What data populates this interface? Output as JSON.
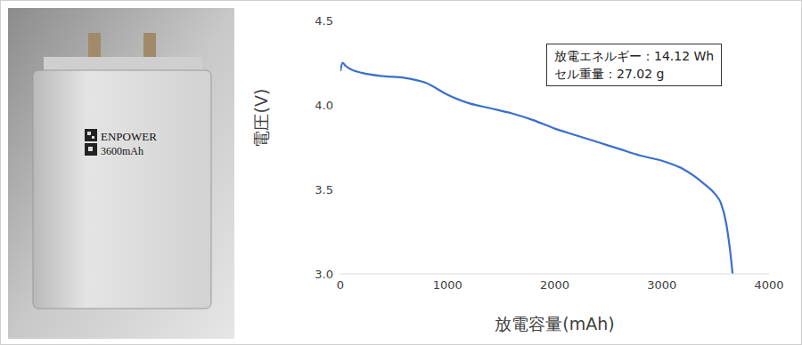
{
  "chart_data": {
    "type": "line",
    "xlabel": "放電容量(mAh)",
    "ylabel": "電圧(V)",
    "x": [
      0,
      20,
      50,
      100,
      200,
      400,
      600,
      800,
      1000,
      1200,
      1400,
      1600,
      1800,
      2000,
      2200,
      2400,
      2600,
      2800,
      3000,
      3200,
      3400,
      3500,
      3550,
      3600,
      3640,
      3660
    ],
    "values": [
      4.2,
      4.25,
      4.23,
      4.21,
      4.19,
      4.17,
      4.16,
      4.13,
      4.06,
      4.01,
      3.98,
      3.95,
      3.91,
      3.86,
      3.82,
      3.78,
      3.74,
      3.7,
      3.67,
      3.62,
      3.53,
      3.47,
      3.42,
      3.3,
      3.12,
      3.0
    ],
    "color": "#3a6fcd",
    "xlim": [
      0,
      4000
    ],
    "xticks": [
      0,
      1000,
      2000,
      3000,
      4000
    ],
    "ylim": [
      3,
      4.5
    ],
    "yticks": [
      {
        "value": 3,
        "label": "3.0"
      },
      {
        "value": 3.5,
        "label": "3.5"
      },
      {
        "value": 4,
        "label": "4.0"
      },
      {
        "value": 4.5,
        "label": "4.5"
      }
    ],
    "grid": false,
    "annotations": [
      "放電エネルギー：14.12 Wh",
      "セル重量：27.02 g"
    ]
  },
  "photo": {
    "texts": [
      "ENPOWER",
      "3600mAh"
    ]
  }
}
